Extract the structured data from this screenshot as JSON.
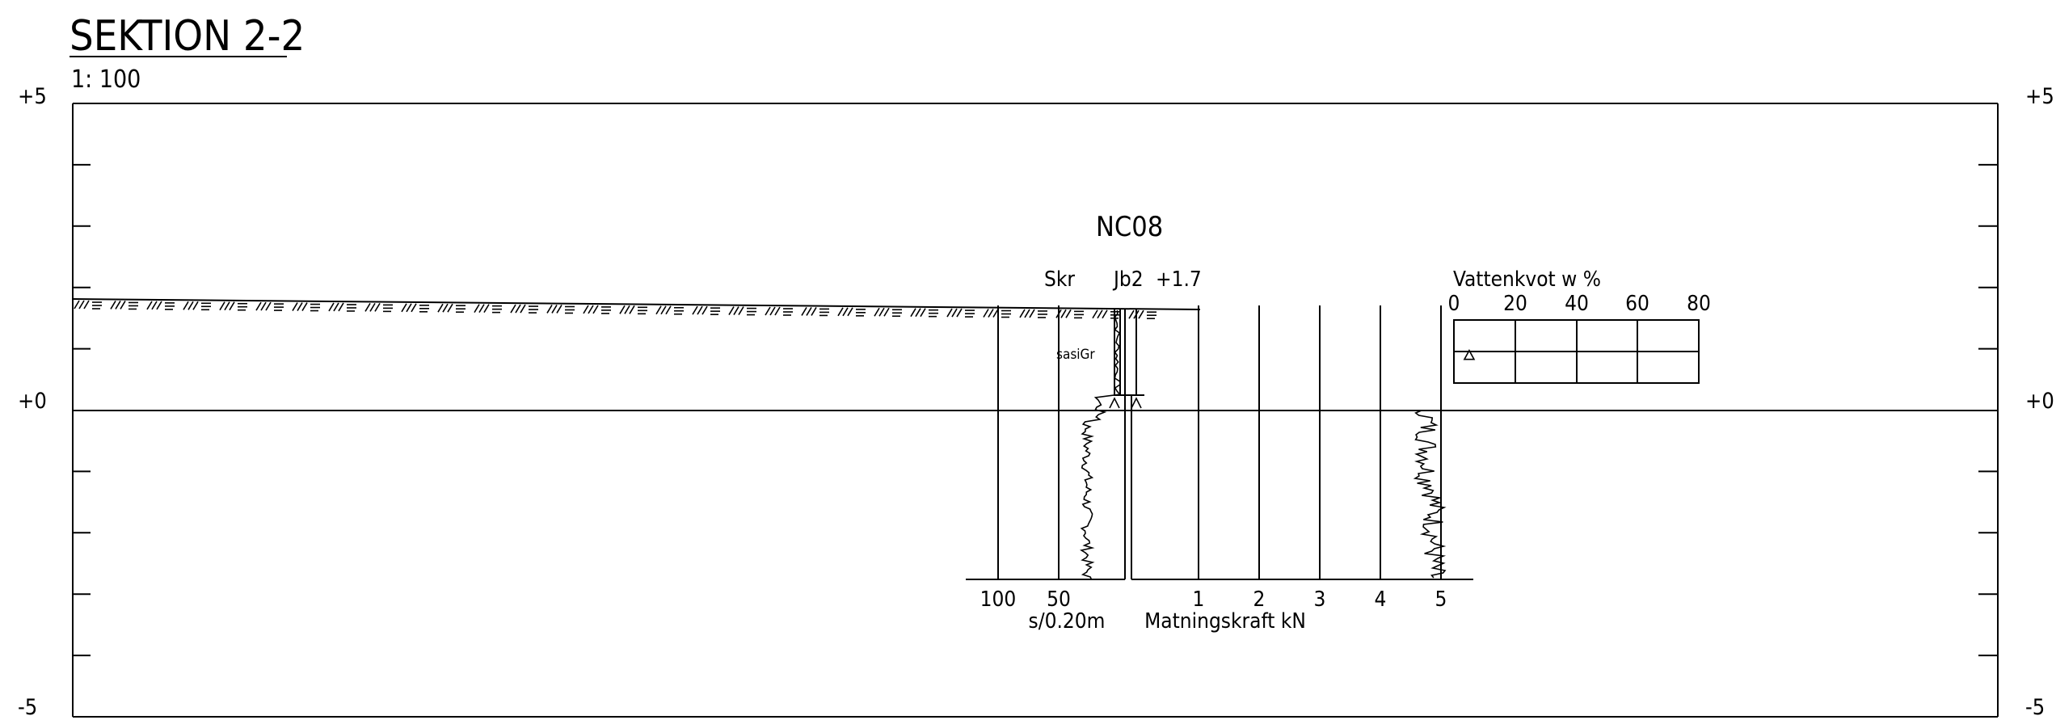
{
  "title": "SEKTION 2-2",
  "scale": "1: 100",
  "elevations": {
    "top": "+5",
    "zero": "+0",
    "bottom": "-5"
  },
  "borehole": {
    "name": "NC08",
    "method_left": "Skr",
    "method_right": "Jb2",
    "ground_level": "+1.7",
    "soil_label": "sasiGr"
  },
  "left_axis": {
    "ticks": [
      "100",
      "50"
    ],
    "unit": "s/0.20m"
  },
  "right_axis": {
    "ticks": [
      "1",
      "2",
      "3",
      "4",
      "5"
    ],
    "unit": "Matningskraft kN"
  },
  "water_content": {
    "title": "Vattenkvot w %",
    "ticks": [
      "0",
      "20",
      "40",
      "60",
      "80"
    ],
    "points": [
      {
        "w": 5,
        "level": 0.9
      }
    ]
  }
}
